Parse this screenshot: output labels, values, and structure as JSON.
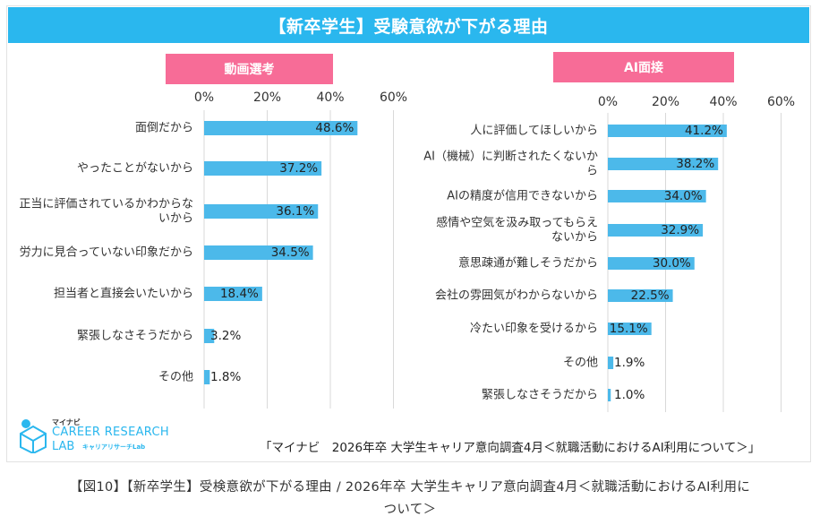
{
  "title": "【新卒学生】受験意欲が下がる理由",
  "source": "「マイナビ　2026年卒 大学生キャリア意向調査4月＜就職活動におけるAI利用について＞」",
  "caption_line1": "【図10】【新卒学生】受検意欲が下がる理由 / 2026年卒 大学生キャリア意向調査4月＜就職活動におけるAI利用に",
  "caption_line2": "ついて＞",
  "logo": {
    "top": "マイナビ",
    "main": "CAREER RESEARCH",
    "lab": "LAB",
    "sub": "キャリアリサーチLab"
  },
  "colors": {
    "header": "#2ab7ee",
    "panel_label": "#f76c97",
    "bar": "#4cb9ea",
    "grid": "#d9d9d9"
  },
  "chart_data": [
    {
      "type": "bar",
      "orientation": "horizontal",
      "title": "動画選考",
      "categories": [
        "面倒だから",
        "やったことがないから",
        "正当に評価されているかわからないから",
        "労力に見合っていない印象だから",
        "担当者と直接会いたいから",
        "緊張しなさそうだから",
        "その他"
      ],
      "category_lines": [
        [
          "面倒だから"
        ],
        [
          "やったことがないから"
        ],
        [
          "正当に評価されているかわからな",
          "いから"
        ],
        [
          "労力に見合っていない印象だから"
        ],
        [
          "担当者と直接会いたいから"
        ],
        [
          "緊張しなさそうだから"
        ],
        [
          "その他"
        ]
      ],
      "values": [
        48.6,
        37.2,
        36.1,
        34.5,
        18.4,
        3.2,
        1.8
      ],
      "value_labels": [
        "48.6%",
        "37.2%",
        "36.1%",
        "34.5%",
        "18.4%",
        "3.2%",
        "1.8%"
      ],
      "xlim": [
        0,
        60
      ],
      "ticks": [
        "0%",
        "20%",
        "40%",
        "60%"
      ]
    },
    {
      "type": "bar",
      "orientation": "horizontal",
      "title": "AI面接",
      "categories": [
        "人に評価してほしいから",
        "AI（機械）に判断されたくないから",
        "AIの精度が信用できないから",
        "感情や空気を汲み取ってもらえないから",
        "意思疎通が難しそうだから",
        "会社の雰囲気がわからないから",
        "冷たい印象を受けるから",
        "その他",
        "緊張しなさそうだから"
      ],
      "category_lines": [
        [
          "人に評価してほしいから"
        ],
        [
          "AI（機械）に判断されたくないか",
          "ら"
        ],
        [
          "AIの精度が信用できないから"
        ],
        [
          "感情や空気を汲み取ってもらえ",
          "ないから"
        ],
        [
          "意思疎通が難しそうだから"
        ],
        [
          "会社の雰囲気がわからないから"
        ],
        [
          "冷たい印象を受けるから"
        ],
        [
          "その他"
        ],
        [
          "緊張しなさそうだから"
        ]
      ],
      "values": [
        41.2,
        38.2,
        34.0,
        32.9,
        30.0,
        22.5,
        15.1,
        1.9,
        1.0
      ],
      "value_labels": [
        "41.2%",
        "38.2%",
        "34.0%",
        "32.9%",
        "30.0%",
        "22.5%",
        "15.1%",
        "1.9%",
        "1.0%"
      ],
      "xlim": [
        0,
        60
      ],
      "ticks": [
        "0%",
        "20%",
        "40%",
        "60%"
      ]
    }
  ]
}
